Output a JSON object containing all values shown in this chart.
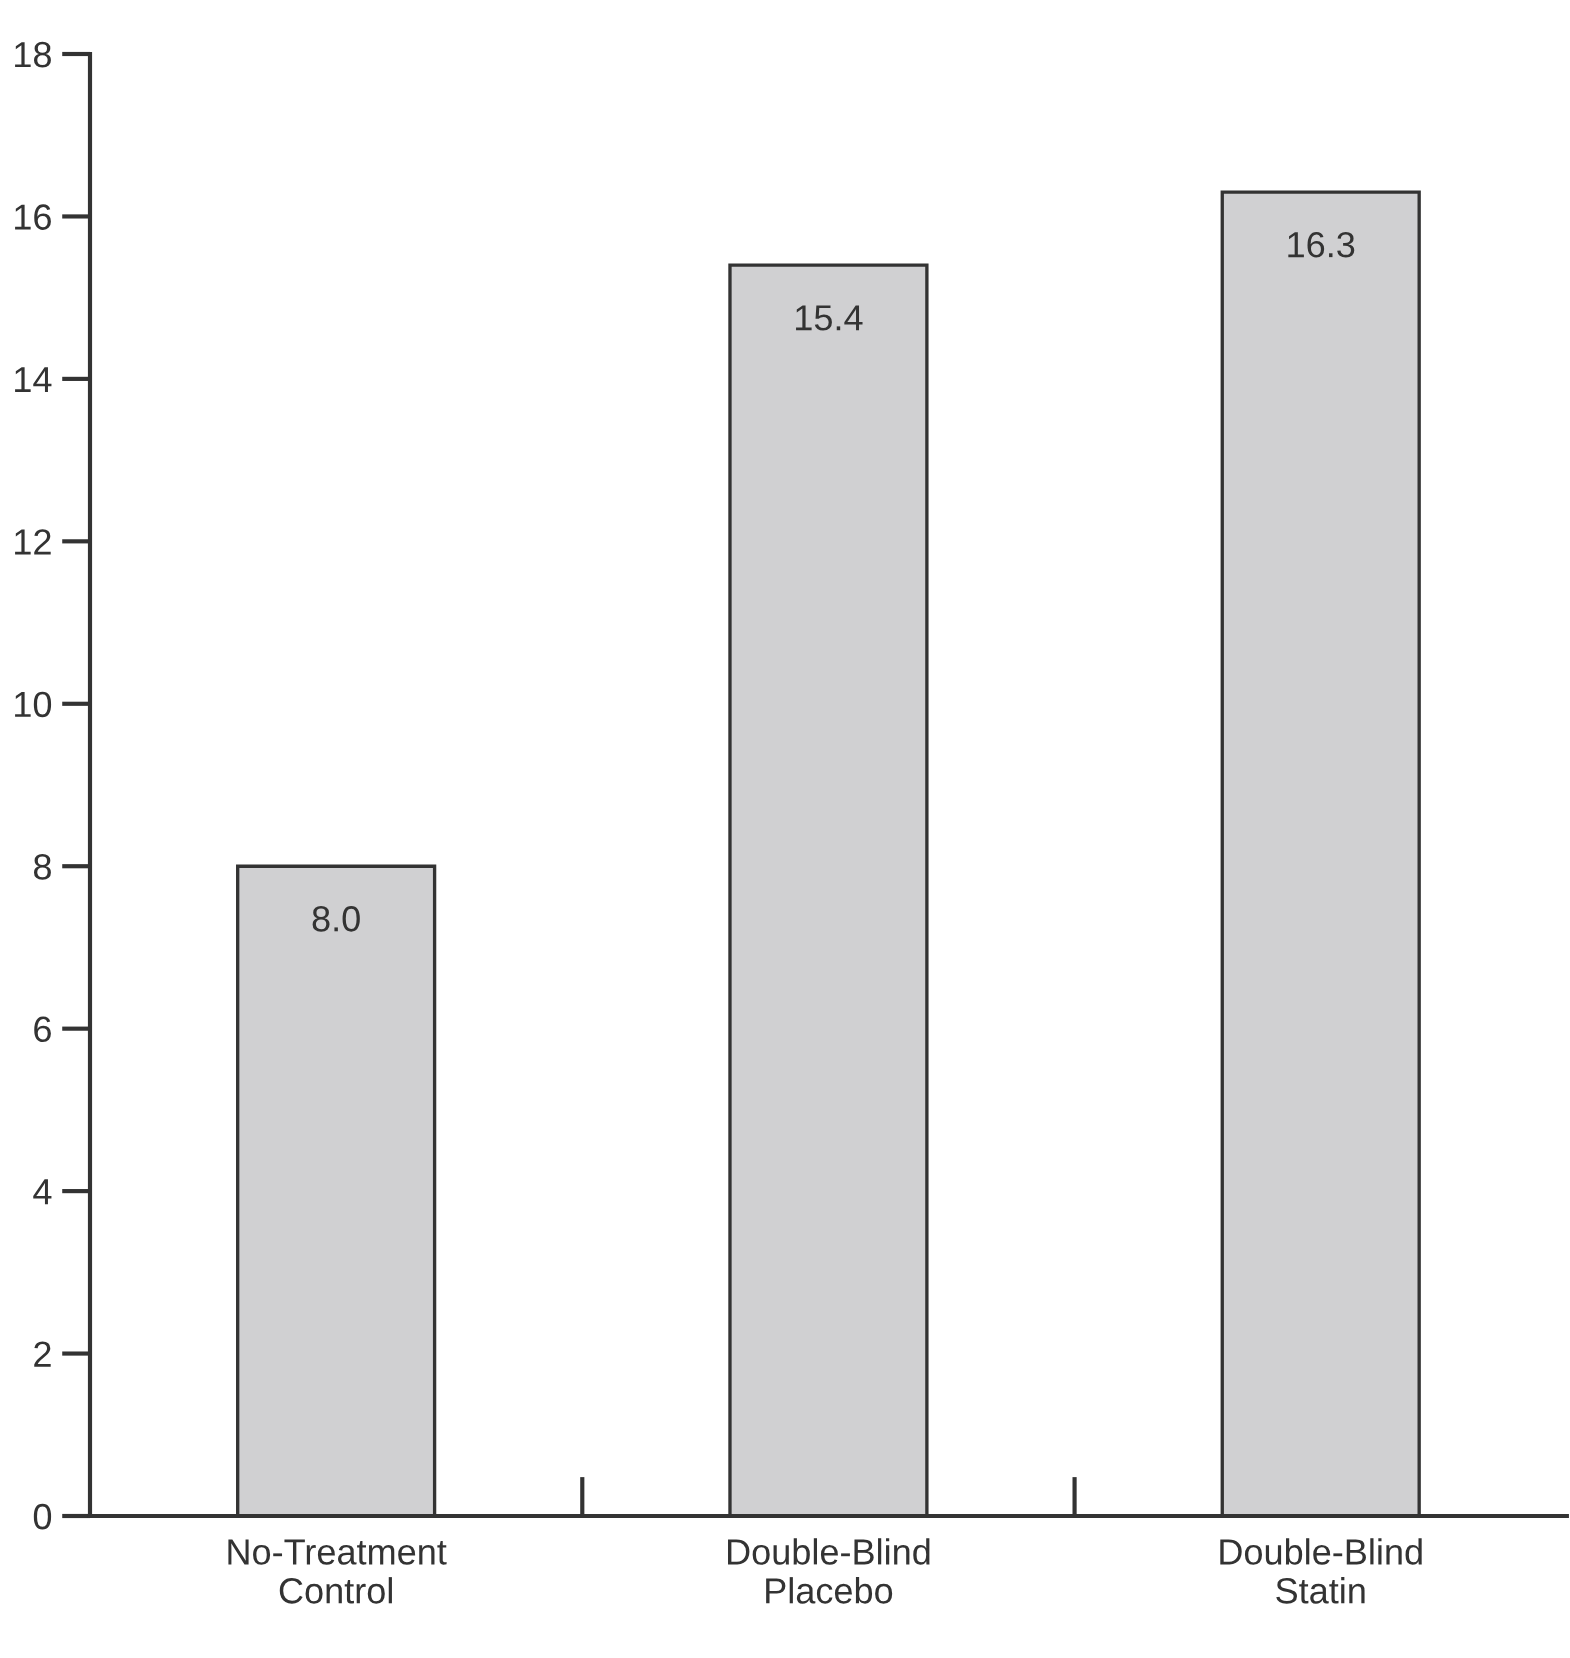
{
  "chart_data": {
    "type": "bar",
    "categories": [
      "No-Treatment\nControl",
      "Double-Blind\nPlacebo",
      "Double-Blind\nStatin"
    ],
    "values": [
      8.0,
      15.4,
      16.3
    ],
    "value_labels": [
      "8.0",
      "15.4",
      "16.3"
    ],
    "color": "#d0d0d2",
    "ylim": [
      0,
      18
    ],
    "yticks": [
      0,
      2,
      4,
      6,
      8,
      10,
      12,
      14,
      16,
      18
    ],
    "grid": false,
    "legend": false
  }
}
